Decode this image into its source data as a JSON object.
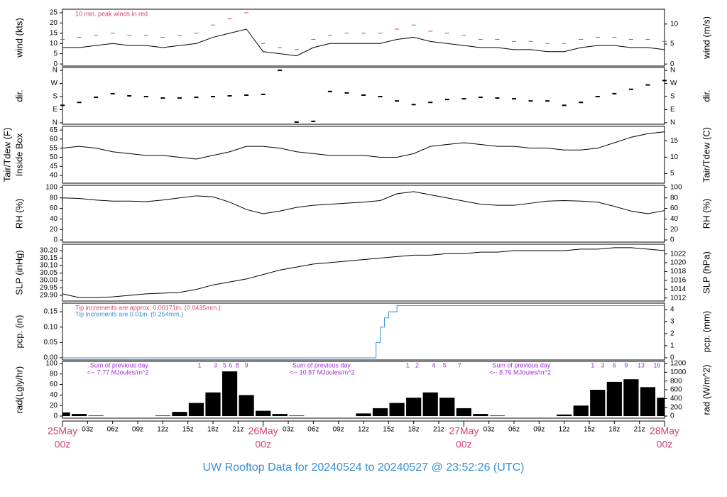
{
  "title": "UW Rooftop Data for 20240524  to  20240527 @ 23:52:26  (UTC)",
  "chart_data": [
    {
      "type": "line",
      "ylabel": "wind (kts)",
      "y2label": "wind (m/s)",
      "x": [
        0,
        2,
        4,
        6,
        8,
        10,
        12,
        14,
        16,
        18,
        20,
        22,
        24,
        26,
        28,
        30,
        32,
        34,
        36,
        38,
        40,
        42,
        44,
        46,
        48,
        50,
        52,
        54,
        56,
        58,
        60,
        62,
        64,
        66,
        68,
        70,
        72
      ],
      "xlim": [
        0,
        72
      ],
      "ylim": [
        -1,
        26.7
      ],
      "yticks": [
        0,
        5,
        10,
        15,
        20,
        25
      ],
      "y2lim": [
        -0.5,
        13.7
      ],
      "y2ticks": [
        0,
        5,
        10
      ],
      "notes": [
        {
          "text": "10 min. peak winds in red",
          "color": "#d6436e"
        }
      ],
      "series": [
        {
          "color": "#000000",
          "style": "line",
          "values": [
            8,
            8,
            9,
            10,
            9,
            9,
            8,
            9,
            10,
            13,
            15,
            17,
            6,
            5,
            4,
            8,
            10,
            10,
            10,
            10,
            12,
            13,
            11,
            10,
            9,
            8,
            8,
            7,
            7,
            6,
            6,
            8,
            9,
            9,
            8,
            8,
            7
          ]
        },
        {
          "color": "#d6436e",
          "style": "dash",
          "values": [
            12,
            13,
            14,
            15,
            14,
            14,
            13,
            14,
            15,
            19,
            22,
            25,
            10,
            8,
            7,
            12,
            14,
            15,
            15,
            15,
            17,
            19,
            16,
            15,
            14,
            12,
            12,
            11,
            11,
            10,
            10,
            12,
            13,
            13,
            12,
            12,
            11
          ]
        }
      ]
    },
    {
      "type": "scatter",
      "ylabel": "dir.",
      "y2label": "dir.",
      "x": [
        0,
        2,
        4,
        6,
        8,
        10,
        12,
        14,
        16,
        18,
        20,
        22,
        24,
        26,
        28,
        30,
        32,
        34,
        36,
        38,
        40,
        42,
        44,
        46,
        48,
        50,
        52,
        54,
        56,
        58,
        60,
        62,
        64,
        66,
        68,
        70,
        72
      ],
      "xlim": [
        0,
        72
      ],
      "ylim": [
        -10,
        380
      ],
      "yticks": [
        {
          "value": 0,
          "label": "N"
        },
        {
          "value": 90,
          "label": "E"
        },
        {
          "value": 180,
          "label": "S"
        },
        {
          "value": 270,
          "label": "W"
        },
        {
          "value": 360,
          "label": "N"
        }
      ],
      "y2lim": [
        -10,
        380
      ],
      "y2ticks": [
        {
          "value": 0,
          "label": "N"
        },
        {
          "value": 90,
          "label": "E"
        },
        {
          "value": 180,
          "label": "S"
        },
        {
          "value": 270,
          "label": "W"
        },
        {
          "value": 360,
          "label": "N"
        }
      ],
      "series": [
        {
          "color": "#000000",
          "values": [
            120,
            140,
            175,
            200,
            185,
            180,
            170,
            170,
            175,
            180,
            185,
            190,
            195,
            360,
            5,
            10,
            215,
            205,
            190,
            180,
            150,
            125,
            140,
            160,
            165,
            175,
            170,
            165,
            150,
            150,
            120,
            140,
            180,
            200,
            230,
            260,
            290
          ]
        }
      ]
    },
    {
      "type": "line",
      "ylabel": [
        "Tair/Tdew (F)",
        "Inside Box"
      ],
      "y2label": "Tair/Tdew (C)",
      "x": [
        0,
        2,
        4,
        6,
        8,
        10,
        12,
        14,
        16,
        18,
        20,
        22,
        24,
        26,
        28,
        30,
        32,
        34,
        36,
        38,
        40,
        42,
        44,
        46,
        48,
        50,
        52,
        54,
        56,
        58,
        60,
        62,
        64,
        66,
        68,
        70,
        72
      ],
      "xlim": [
        0,
        72
      ],
      "ylim": [
        35.7,
        67
      ],
      "yticks": [
        40,
        45,
        50,
        55,
        60,
        65
      ],
      "y2lim": [
        2.06,
        19.4
      ],
      "y2ticks": [
        5,
        10,
        15
      ],
      "series": [
        {
          "color": "#000000",
          "style": "line",
          "values": [
            55,
            56,
            55,
            53,
            52,
            51,
            51,
            50,
            49,
            51,
            53,
            56,
            56,
            55,
            53,
            52,
            51,
            51,
            51,
            50,
            50,
            52,
            56,
            57,
            58,
            57,
            56,
            56,
            55,
            55,
            54,
            54,
            55,
            58,
            61,
            63,
            64
          ]
        }
      ]
    },
    {
      "type": "line",
      "ylabel": "RH (%)",
      "y2label": "RH (%)",
      "x": [
        0,
        2,
        4,
        6,
        8,
        10,
        12,
        14,
        16,
        18,
        20,
        22,
        24,
        26,
        28,
        30,
        32,
        34,
        36,
        38,
        40,
        42,
        44,
        46,
        48,
        50,
        52,
        54,
        56,
        58,
        60,
        62,
        64,
        66,
        68,
        70,
        72
      ],
      "xlim": [
        0,
        72
      ],
      "ylim": [
        -4,
        104
      ],
      "yticks": [
        0,
        20,
        40,
        60,
        80,
        100
      ],
      "y2lim": [
        -4,
        104
      ],
      "y2ticks": [
        0,
        20,
        40,
        60,
        80,
        100
      ],
      "series": [
        {
          "color": "#000000",
          "style": "line",
          "values": [
            80,
            79,
            76,
            74,
            74,
            73,
            76,
            80,
            84,
            82,
            72,
            58,
            50,
            55,
            62,
            66,
            68,
            70,
            72,
            75,
            88,
            92,
            86,
            80,
            74,
            68,
            66,
            66,
            70,
            74,
            75,
            74,
            72,
            64,
            55,
            50,
            56
          ]
        }
      ]
    },
    {
      "type": "line",
      "ylabel": "SLP (inHg)",
      "y2label": "SLP (hPa)",
      "x": [
        0,
        2,
        4,
        6,
        8,
        10,
        12,
        14,
        16,
        18,
        20,
        22,
        24,
        26,
        28,
        30,
        32,
        34,
        36,
        38,
        40,
        42,
        44,
        46,
        48,
        50,
        52,
        54,
        56,
        58,
        60,
        62,
        64,
        66,
        68,
        70,
        72
      ],
      "xlim": [
        0,
        72
      ],
      "ylim": [
        29.862,
        30.243
      ],
      "yticks": [
        {
          "value": 29.9,
          "label": "29.90"
        },
        {
          "value": 29.95,
          "label": "29.95"
        },
        {
          "value": 30,
          "label": "30.00"
        },
        {
          "value": 30.05,
          "label": "30.05"
        },
        {
          "value": 30.1,
          "label": "30.10"
        },
        {
          "value": 30.15,
          "label": "30.15"
        },
        {
          "value": 30.2,
          "label": "30.20"
        }
      ],
      "y2lim": [
        1011.3,
        1024.2
      ],
      "y2ticks": [
        1012,
        1014,
        1016,
        1018,
        1020,
        1022
      ],
      "series": [
        {
          "color": "#000000",
          "style": "line",
          "values": [
            29.91,
            29.885,
            29.885,
            29.89,
            29.9,
            29.91,
            29.915,
            29.92,
            29.94,
            29.97,
            29.99,
            30.01,
            30.04,
            30.07,
            30.09,
            30.11,
            30.12,
            30.13,
            30.14,
            30.15,
            30.16,
            30.17,
            30.17,
            30.18,
            30.18,
            30.19,
            30.19,
            30.2,
            30.2,
            30.2,
            30.2,
            30.21,
            30.21,
            30.22,
            30.22,
            30.21,
            30.2
          ]
        }
      ]
    },
    {
      "type": "line",
      "ylabel": "pcp. (in)",
      "y2label": "pcp. (mm)",
      "x": [
        0,
        37,
        37.5,
        38,
        38.5,
        39,
        40,
        72
      ],
      "xlim": [
        0,
        72
      ],
      "ylim": [
        -0.007,
        0.178
      ],
      "yticks": [
        {
          "value": 0,
          "label": "0.00"
        },
        {
          "value": 0.05,
          "label": "0.05"
        },
        {
          "value": 0.1,
          "label": "0.10"
        },
        {
          "value": 0.15,
          "label": "0.15"
        }
      ],
      "y2lim": [
        -0.18,
        4.52
      ],
      "y2ticks": [
        0,
        1,
        2,
        3,
        4
      ],
      "notes": [
        {
          "text": "Tip increments are approx. 0.00171in. (0.0435mm.)",
          "color": "#d6436e"
        },
        {
          "text": "Tip increments are 0.01in. (0.254mm.)",
          "color": "#3a8fd0"
        }
      ],
      "series": [
        {
          "color": "#3a8fd0",
          "style": "step",
          "values": [
            0,
            0,
            0.05,
            0.1,
            0.13,
            0.15,
            0.17,
            0.17
          ]
        }
      ]
    },
    {
      "type": "bar",
      "ylabel": "rad(Lgly/hr)",
      "y2label": "rad (W/m^2)",
      "x": [
        0,
        2,
        4,
        6,
        8,
        10,
        12,
        14,
        16,
        18,
        20,
        22,
        24,
        26,
        28,
        30,
        32,
        34,
        36,
        38,
        40,
        42,
        44,
        46,
        48,
        50,
        52,
        54,
        56,
        58,
        60,
        62,
        64,
        66,
        68,
        70,
        72
      ],
      "xlim": [
        0,
        72
      ],
      "ylim": [
        -4,
        104
      ],
      "yticks": [
        0,
        20,
        40,
        60,
        80,
        100
      ],
      "y2lim": [
        -48,
        1248
      ],
      "y2ticks": [
        0,
        200,
        400,
        600,
        800,
        1000,
        1200
      ],
      "xticks": [
        {
          "value": 0,
          "label": "00z"
        },
        {
          "value": 3,
          "label": "03z"
        },
        {
          "value": 6,
          "label": "06z"
        },
        {
          "value": 9,
          "label": "09z"
        },
        {
          "value": 12,
          "label": "12z"
        },
        {
          "value": 15,
          "label": "15z"
        },
        {
          "value": 18,
          "label": "18z"
        },
        {
          "value": 21,
          "label": "21z"
        },
        {
          "value": 24,
          "label": "00z"
        },
        {
          "value": 27,
          "label": "03z"
        },
        {
          "value": 30,
          "label": "06z"
        },
        {
          "value": 33,
          "label": "09z"
        },
        {
          "value": 36,
          "label": "12z"
        },
        {
          "value": 39,
          "label": "15z"
        },
        {
          "value": 42,
          "label": "18z"
        },
        {
          "value": 45,
          "label": "21z"
        },
        {
          "value": 48,
          "label": "00z"
        },
        {
          "value": 51,
          "label": "03z"
        },
        {
          "value": 54,
          "label": "06z"
        },
        {
          "value": 57,
          "label": "09z"
        },
        {
          "value": 60,
          "label": "12z"
        },
        {
          "value": 63,
          "label": "15z"
        },
        {
          "value": 66,
          "label": "18z"
        },
        {
          "value": 69,
          "label": "21z"
        },
        {
          "value": 72,
          "label": "00z"
        }
      ],
      "xtick_dates": [
        {
          "value": 0,
          "label": "25May"
        },
        {
          "value": 24,
          "label": "26May"
        },
        {
          "value": 48,
          "label": "27May"
        },
        {
          "value": 72,
          "label": "28May"
        }
      ],
      "annotations": [
        {
          "x": 3.3,
          "lines": [
            "Sum of previous day",
            "<-- 7.77 MJoules/m^2"
          ]
        },
        {
          "x": 27.5,
          "lines": [
            "Sum of previous day",
            "<-- 10.87 MJoules/m^2"
          ]
        },
        {
          "x": 51.4,
          "lines": [
            "Sum of previous day",
            "<-- 8.76 MJoules/m^2"
          ]
        }
      ],
      "hour_marks": [
        {
          "x": 16.4,
          "label": "1"
        },
        {
          "x": 18.3,
          "label": "3"
        },
        {
          "x": 19.4,
          "label": "5"
        },
        {
          "x": 20.1,
          "label": "6"
        },
        {
          "x": 20.9,
          "label": "8"
        },
        {
          "x": 22,
          "label": "9"
        },
        {
          "x": 41.3,
          "label": "1"
        },
        {
          "x": 42.4,
          "label": "2"
        },
        {
          "x": 44.4,
          "label": "4"
        },
        {
          "x": 45.7,
          "label": "5"
        },
        {
          "x": 47.5,
          "label": "7"
        },
        {
          "x": 63.4,
          "label": "1"
        },
        {
          "x": 64.6,
          "label": "3"
        },
        {
          "x": 66,
          "label": "6"
        },
        {
          "x": 67.4,
          "label": "9"
        },
        {
          "x": 69.2,
          "label": "13"
        },
        {
          "x": 71.1,
          "label": "16"
        }
      ],
      "series": [
        {
          "color": "#000000",
          "values": [
            7,
            4,
            1,
            0,
            0,
            0,
            1,
            8,
            25,
            45,
            85,
            40,
            10,
            4,
            1,
            0,
            0,
            0,
            5,
            15,
            25,
            35,
            45,
            35,
            15,
            4,
            1,
            0,
            0,
            0,
            3,
            20,
            50,
            65,
            70,
            55,
            35
          ]
        }
      ]
    }
  ]
}
